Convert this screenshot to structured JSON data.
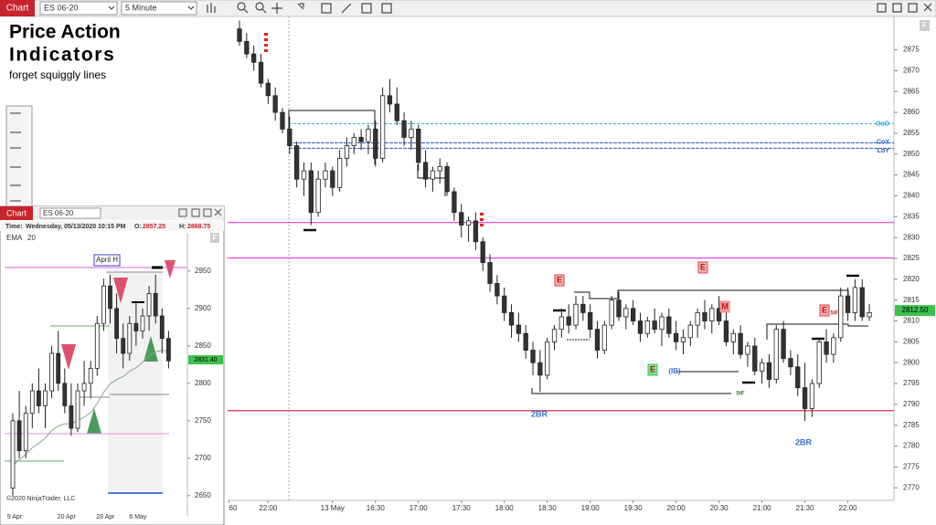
{
  "toolbar": {
    "tab": "Chart",
    "instrument": "ES 06-20",
    "interval": "5 Minute"
  },
  "overlay_text": {
    "title_1": "Price Action",
    "title_2": "Indicators",
    "subtitle": "forget squiggly lines"
  },
  "main_chart": {
    "type": "candlestick",
    "candles": [
      [
        2880,
        2882,
        2876,
        2877
      ],
      [
        2877,
        2879,
        2873,
        2874
      ],
      [
        2874,
        2876,
        2870,
        2872
      ],
      [
        2872,
        2874,
        2866,
        2867
      ],
      [
        2867,
        2868,
        2862,
        2864
      ],
      [
        2864,
        2866,
        2858,
        2860
      ],
      [
        2860,
        2861,
        2855,
        2856
      ],
      [
        2856,
        2859,
        2850,
        2852
      ],
      [
        2852,
        2853,
        2842,
        2844
      ],
      [
        2844,
        2848,
        2840,
        2846
      ],
      [
        2846,
        2848,
        2833,
        2836
      ],
      [
        2836,
        2846,
        2835,
        2844
      ],
      [
        2844,
        2848,
        2842,
        2846
      ],
      [
        2846,
        2847,
        2840,
        2842
      ],
      [
        2842,
        2851,
        2841,
        2849
      ],
      [
        2849,
        2854,
        2847,
        2852
      ],
      [
        2852,
        2855,
        2850,
        2854
      ],
      [
        2854,
        2856,
        2851,
        2853
      ],
      [
        2853,
        2857,
        2850,
        2856
      ],
      [
        2856,
        2858,
        2847,
        2849
      ],
      [
        2849,
        2866,
        2848,
        2864
      ],
      [
        2864,
        2868,
        2860,
        2862
      ],
      [
        2862,
        2866,
        2857,
        2858
      ],
      [
        2858,
        2860,
        2852,
        2854
      ],
      [
        2854,
        2858,
        2851,
        2856
      ],
      [
        2856,
        2857,
        2846,
        2848
      ],
      [
        2848,
        2851,
        2842,
        2844
      ],
      [
        2844,
        2847,
        2841,
        2846
      ],
      [
        2846,
        2849,
        2843,
        2847
      ],
      [
        2847,
        2848,
        2840,
        2841
      ],
      [
        2841,
        2842,
        2834,
        2836
      ],
      [
        2836,
        2838,
        2830,
        2833
      ],
      [
        2833,
        2835,
        2829,
        2834
      ],
      [
        2834,
        2836,
        2827,
        2829
      ],
      [
        2829,
        2830,
        2822,
        2824
      ],
      [
        2824,
        2826,
        2817,
        2819
      ],
      [
        2819,
        2821,
        2814,
        2816
      ],
      [
        2816,
        2818,
        2810,
        2812
      ],
      [
        2812,
        2814,
        2806,
        2809
      ],
      [
        2809,
        2812,
        2805,
        2807
      ],
      [
        2807,
        2809,
        2801,
        2803
      ],
      [
        2803,
        2805,
        2797,
        2800
      ],
      [
        2800,
        2803,
        2793,
        2797
      ],
      [
        2797,
        2806,
        2796,
        2805
      ],
      [
        2805,
        2809,
        2803,
        2808
      ],
      [
        2808,
        2813,
        2806,
        2811
      ],
      [
        2811,
        2814,
        2807,
        2809
      ],
      [
        2809,
        2816,
        2808,
        2814
      ],
      [
        2814,
        2816,
        2810,
        2812
      ],
      [
        2812,
        2814,
        2806,
        2808
      ],
      [
        2808,
        2810,
        2801,
        2803
      ],
      [
        2803,
        2810,
        2802,
        2809
      ],
      [
        2809,
        2816,
        2808,
        2815
      ],
      [
        2815,
        2817,
        2810,
        2811
      ],
      [
        2811,
        2814,
        2808,
        2813
      ],
      [
        2813,
        2815,
        2809,
        2810
      ],
      [
        2810,
        2812,
        2805,
        2807
      ],
      [
        2807,
        2811,
        2806,
        2810
      ],
      [
        2810,
        2813,
        2807,
        2808
      ],
      [
        2808,
        2812,
        2804,
        2811
      ],
      [
        2811,
        2813,
        2806,
        2807
      ],
      [
        2807,
        2810,
        2803,
        2805
      ],
      [
        2805,
        2808,
        2802,
        2806
      ],
      [
        2806,
        2810,
        2804,
        2809
      ],
      [
        2809,
        2813,
        2806,
        2812
      ],
      [
        2812,
        2815,
        2808,
        2810
      ],
      [
        2810,
        2814,
        2807,
        2813
      ],
      [
        2813,
        2816,
        2809,
        2810
      ],
      [
        2810,
        2812,
        2804,
        2805
      ],
      [
        2805,
        2808,
        2802,
        2807
      ],
      [
        2807,
        2809,
        2801,
        2802
      ],
      [
        2802,
        2805,
        2799,
        2804
      ],
      [
        2804,
        2806,
        2797,
        2798
      ],
      [
        2798,
        2801,
        2795,
        2800
      ],
      [
        2800,
        2802,
        2794,
        2796
      ],
      [
        2796,
        2809,
        2795,
        2808
      ],
      [
        2808,
        2810,
        2800,
        2801
      ],
      [
        2801,
        2803,
        2797,
        2799
      ],
      [
        2799,
        2802,
        2792,
        2794
      ],
      [
        2794,
        2800,
        2786,
        2789
      ],
      [
        2789,
        2796,
        2787,
        2795
      ],
      [
        2795,
        2806,
        2794,
        2805
      ],
      [
        2805,
        2808,
        2800,
        2802
      ],
      [
        2802,
        2807,
        2800,
        2806
      ],
      [
        2806,
        2818,
        2805,
        2816
      ],
      [
        2816,
        2818,
        2810,
        2812
      ],
      [
        2812,
        2820,
        2810,
        2818
      ],
      [
        2818,
        2820,
        2810,
        2811
      ],
      [
        2811,
        2814,
        2810,
        2812
      ]
    ],
    "ylim": [
      2767,
      2883
    ],
    "yticks": [
      2770,
      2775,
      2780,
      2785,
      2790,
      2795,
      2800,
      2805,
      2810,
      2815,
      2820,
      2825,
      2830,
      2835,
      2840,
      2845,
      2850,
      2855,
      2860,
      2865,
      2870,
      2875
    ],
    "xlim": [
      -1.66,
      91.44
    ],
    "xticks": [
      {
        "value": -1.5,
        "label": "60"
      },
      {
        "value": 4,
        "label": "22:00"
      },
      {
        "value": 13,
        "label": "13 May"
      },
      {
        "value": 19,
        "label": "16:30"
      },
      {
        "value": 25,
        "label": "17:00"
      },
      {
        "value": 31,
        "label": "17:30"
      },
      {
        "value": 37,
        "label": "18:00"
      },
      {
        "value": 43,
        "label": "18:30"
      },
      {
        "value": 49,
        "label": "19:00"
      },
      {
        "value": 55,
        "label": "19:30"
      },
      {
        "value": 61,
        "label": "20:00"
      },
      {
        "value": 67,
        "label": "20:30"
      },
      {
        "value": 73,
        "label": "21:00"
      },
      {
        "value": 79,
        "label": "21:30"
      },
      {
        "value": 85,
        "label": "22:00"
      }
    ],
    "last_price": {
      "value": 2812.5,
      "label": "2812.50"
    },
    "levels": [
      {
        "name": "OoD",
        "value": 2857.3,
        "color": "#29a8e0"
      },
      {
        "name": "CoY",
        "value": 2852.7,
        "color": "#2f5fc0"
      },
      {
        "name": "LoY",
        "value": 2851.4,
        "color": "#2f5fc0"
      }
    ],
    "horizontal_lines": [
      {
        "value": 2833.6,
        "color": "#e43ae4"
      },
      {
        "value": 2825.1,
        "color": "#e43ae4"
      },
      {
        "value": 2788.5,
        "color": "#d83050"
      }
    ],
    "annotations": [
      "2BR",
      "2BR",
      "(IB)",
      "5tF",
      "5tF",
      "E",
      "E",
      "E",
      "E",
      "M"
    ]
  },
  "inset_window": {
    "tab": "Chart",
    "instrument": "ES 06-20",
    "time_label": "Time:",
    "time": "Wednesday, 05/13/2020 10:15 PM",
    "open_label": "O:",
    "open": 2857.25,
    "high_label": "H:",
    "high": 2868.75,
    "indicator": "EMA",
    "period": 20,
    "level_label": "April H",
    "candles": [
      [
        2660,
        2760,
        2650,
        2750
      ],
      [
        2750,
        2790,
        2700,
        2710
      ],
      [
        2710,
        2770,
        2700,
        2760
      ],
      [
        2760,
        2800,
        2740,
        2790
      ],
      [
        2790,
        2820,
        2760,
        2770
      ],
      [
        2770,
        2800,
        2740,
        2790
      ],
      [
        2790,
        2850,
        2780,
        2840
      ],
      [
        2840,
        2870,
        2790,
        2800
      ],
      [
        2800,
        2820,
        2760,
        2770
      ],
      [
        2770,
        2800,
        2730,
        2740
      ],
      [
        2740,
        2800,
        2735,
        2790
      ],
      [
        2790,
        2830,
        2770,
        2800
      ],
      [
        2800,
        2830,
        2780,
        2820
      ],
      [
        2820,
        2890,
        2810,
        2880
      ],
      [
        2880,
        2940,
        2870,
        2930
      ],
      [
        2930,
        2945,
        2880,
        2900
      ],
      [
        2900,
        2920,
        2840,
        2860
      ],
      [
        2860,
        2880,
        2820,
        2840
      ],
      [
        2840,
        2890,
        2830,
        2880
      ],
      [
        2880,
        2910,
        2850,
        2870
      ],
      [
        2870,
        2900,
        2860,
        2890
      ],
      [
        2890,
        2930,
        2870,
        2920
      ],
      [
        2920,
        2945,
        2880,
        2890
      ],
      [
        2890,
        2900,
        2840,
        2860
      ],
      [
        2860,
        2870,
        2820,
        2830
      ]
    ],
    "ema": [
      2690,
      2698,
      2705,
      2714,
      2720,
      2727,
      2737,
      2743,
      2746,
      2746,
      2750,
      2755,
      2761,
      2773,
      2788,
      2799,
      2805,
      2809,
      2816,
      2821,
      2828,
      2837,
      2842,
      2844,
      2843
    ],
    "ylim": [
      2623,
      3001
    ],
    "yticks": [
      2650,
      2700,
      2750,
      2800,
      2850,
      2900,
      2950
    ],
    "xticks": [
      "9 Apr",
      "20 Apr",
      "28 Apr",
      "6 May"
    ],
    "last_price": {
      "value": 2831.4,
      "label": "2831.40"
    },
    "copyright": "©2020 NinjaTrader, LLC"
  }
}
